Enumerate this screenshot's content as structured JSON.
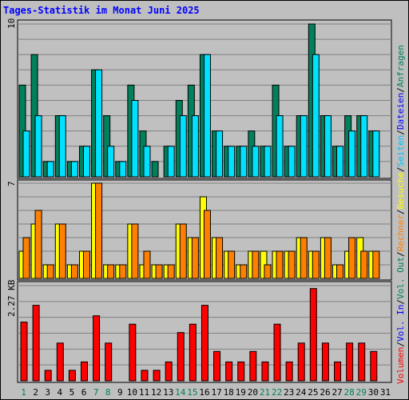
{
  "title": "Tages-Statistik im Monat Juni 2025",
  "legend": {
    "hits_label": "Anfragen",
    "files_label": "Dateien",
    "pages_label": "Seiten",
    "visits_label": "Besuche",
    "sites_label": "Rechner",
    "volout_label": "Vol. Out",
    "volin_label": "Vol. In",
    "volume_label": "Volumen",
    "sep": "/"
  },
  "colors": {
    "background": "#c0c0c0",
    "hits": "#00805c",
    "files": "#00e0ff",
    "pages": "#00c0ff",
    "visits": "#ffff00",
    "sites": "#ff8000",
    "volume": "#ff0000",
    "weekend_day": "#00805c",
    "title": "#0000ff"
  },
  "chart_data": [
    {
      "type": "bar",
      "panel": "hits-files",
      "ymax_label": "10",
      "ylim": [
        0,
        10
      ],
      "x": [
        1,
        2,
        3,
        4,
        5,
        6,
        7,
        8,
        9,
        10,
        11,
        12,
        13,
        14,
        15,
        16,
        17,
        18,
        19,
        20,
        21,
        22,
        23,
        24,
        25,
        26,
        27,
        28,
        29,
        30,
        31
      ],
      "weekend_days": [
        1,
        7,
        8,
        14,
        15,
        21,
        22,
        28,
        29
      ],
      "series": [
        {
          "name": "Anfragen",
          "values": [
            6,
            8,
            1,
            4,
            1,
            2,
            7,
            4,
            1,
            6,
            3,
            1,
            2,
            5,
            6,
            8,
            3,
            2,
            2,
            3,
            2,
            6,
            2,
            4,
            10,
            4,
            2,
            4,
            4,
            3,
            0
          ]
        },
        {
          "name": "Dateien",
          "values": [
            3,
            4,
            1,
            4,
            1,
            2,
            7,
            2,
            1,
            5,
            2,
            0,
            2,
            4,
            4,
            8,
            3,
            2,
            2,
            2,
            2,
            4,
            2,
            4,
            8,
            4,
            2,
            3,
            4,
            3,
            0
          ]
        }
      ]
    },
    {
      "type": "bar",
      "panel": "visits-sites",
      "ymax_label": "7",
      "ylim": [
        0,
        7
      ],
      "x": [
        1,
        2,
        3,
        4,
        5,
        6,
        7,
        8,
        9,
        10,
        11,
        12,
        13,
        14,
        15,
        16,
        17,
        18,
        19,
        20,
        21,
        22,
        23,
        24,
        25,
        26,
        27,
        28,
        29,
        30,
        31
      ],
      "series": [
        {
          "name": "Besuche",
          "values": [
            2,
            4,
            1,
            4,
            1,
            2,
            7,
            1,
            1,
            4,
            1,
            1,
            1,
            4,
            3,
            6,
            3,
            2,
            1,
            2,
            2,
            2,
            2,
            3,
            2,
            3,
            1,
            2,
            3,
            2,
            0
          ]
        },
        {
          "name": "Rechner",
          "values": [
            3,
            5,
            1,
            4,
            1,
            2,
            7,
            1,
            1,
            4,
            2,
            1,
            1,
            4,
            3,
            5,
            3,
            2,
            1,
            2,
            1,
            2,
            2,
            3,
            2,
            3,
            1,
            3,
            2,
            2,
            0
          ]
        }
      ]
    },
    {
      "type": "bar",
      "panel": "volume",
      "ymax_label": "2.27 KB",
      "ylim": [
        0,
        2.27
      ],
      "x": [
        1,
        2,
        3,
        4,
        5,
        6,
        7,
        8,
        9,
        10,
        11,
        12,
        13,
        14,
        15,
        16,
        17,
        18,
        19,
        20,
        21,
        22,
        23,
        24,
        25,
        26,
        27,
        28,
        29,
        30,
        31
      ],
      "series": [
        {
          "name": "Volumen",
          "values": [
            1.4,
            1.8,
            0.25,
            0.9,
            0.25,
            0.45,
            1.55,
            0.9,
            0,
            1.35,
            0.25,
            0.25,
            0.45,
            1.15,
            1.35,
            1.8,
            0.7,
            0.45,
            0.45,
            0.7,
            0.45,
            1.35,
            0.45,
            0.9,
            2.2,
            0.9,
            0.45,
            0.9,
            0.9,
            0.7,
            0
          ]
        }
      ]
    }
  ]
}
